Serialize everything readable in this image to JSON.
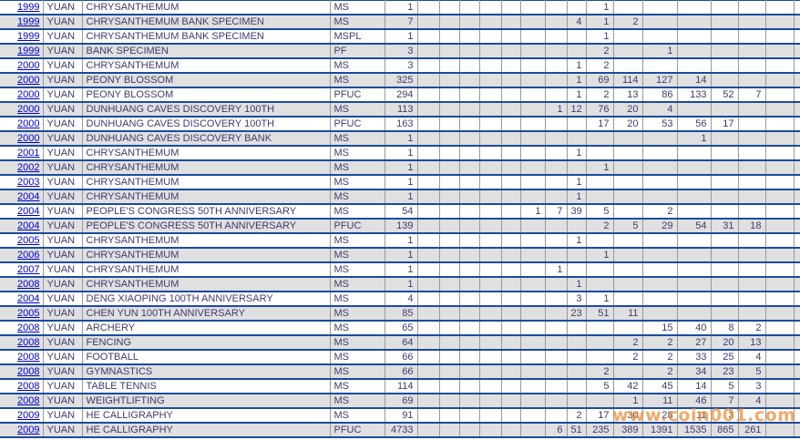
{
  "colors": {
    "row_separator_blue": "#1b4b9e",
    "grid_line_gray": "#999999",
    "text_ink": "#413a6e",
    "year_link_blue": "#0000cc",
    "alt_row_gray": "#e0e0e0",
    "watermark_orange": "#ea9440"
  },
  "watermark": {
    "text": "www.coin001.com"
  },
  "census_table": {
    "rows": [
      {
        "year": "1999",
        "denomination": "YUAN",
        "description": "CHRYSANTHEMUM",
        "designation": "MS",
        "total": "1",
        "grades": [
          "",
          "",
          "",
          "",
          "",
          "",
          "",
          "",
          "1",
          "",
          "",
          "",
          "",
          "",
          "",
          ""
        ]
      },
      {
        "year": "1999",
        "denomination": "YUAN",
        "description": "CHRYSANTHEMUM BANK SPECIMEN",
        "designation": "MS",
        "total": "7",
        "grades": [
          "",
          "",
          "",
          "",
          "",
          "",
          "",
          "4",
          "1",
          "2",
          "",
          "",
          "",
          "",
          "",
          ""
        ]
      },
      {
        "year": "1999",
        "denomination": "YUAN",
        "description": "CHRYSANTHEMUM BANK SPECIMEN",
        "designation": "MSPL",
        "total": "1",
        "grades": [
          "",
          "",
          "",
          "",
          "",
          "",
          "",
          "",
          "1",
          "",
          "",
          "",
          "",
          "",
          "",
          ""
        ]
      },
      {
        "year": "1999",
        "denomination": "YUAN",
        "description": "BANK SPECIMEN",
        "designation": "PF",
        "total": "3",
        "grades": [
          "",
          "",
          "",
          "",
          "",
          "",
          "",
          "",
          "2",
          "",
          "1",
          "",
          "",
          "",
          "",
          ""
        ]
      },
      {
        "year": "2000",
        "denomination": "YUAN",
        "description": "CHRYSANTHEMUM",
        "designation": "MS",
        "total": "3",
        "grades": [
          "",
          "",
          "",
          "",
          "",
          "",
          "",
          "1",
          "2",
          "",
          "",
          "",
          "",
          "",
          "",
          ""
        ]
      },
      {
        "year": "2000",
        "denomination": "YUAN",
        "description": "PEONY BLOSSOM",
        "designation": "MS",
        "total": "325",
        "grades": [
          "",
          "",
          "",
          "",
          "",
          "",
          "",
          "1",
          "69",
          "114",
          "127",
          "14",
          "",
          "",
          "",
          ""
        ]
      },
      {
        "year": "2000",
        "denomination": "YUAN",
        "description": "PEONY BLOSSOM",
        "designation": "PFUC",
        "total": "294",
        "grades": [
          "",
          "",
          "",
          "",
          "",
          "",
          "",
          "1",
          "2",
          "13",
          "86",
          "133",
          "52",
          "7",
          "",
          ""
        ]
      },
      {
        "year": "2000",
        "denomination": "YUAN",
        "description": "DUNHUANG CAVES DISCOVERY 100TH",
        "designation": "MS",
        "total": "113",
        "grades": [
          "",
          "",
          "",
          "",
          "",
          "",
          "1",
          "12",
          "76",
          "20",
          "4",
          "",
          "",
          "",
          "",
          ""
        ]
      },
      {
        "year": "2000",
        "denomination": "YUAN",
        "description": "DUNHUANG CAVES DISCOVERY 100TH",
        "designation": "PFUC",
        "total": "163",
        "grades": [
          "",
          "",
          "",
          "",
          "",
          "",
          "",
          "",
          "17",
          "20",
          "53",
          "56",
          "17",
          "",
          "",
          ""
        ]
      },
      {
        "year": "2000",
        "denomination": "YUAN",
        "description": "DUNHUANG CAVES DISCOVERY BANK",
        "designation": "MS",
        "total": "1",
        "grades": [
          "",
          "",
          "",
          "",
          "",
          "",
          "",
          "",
          "",
          "",
          "",
          "1",
          "",
          "",
          "",
          ""
        ]
      },
      {
        "year": "2001",
        "denomination": "YUAN",
        "description": "CHRYSANTHEMUM",
        "designation": "MS",
        "total": "1",
        "grades": [
          "",
          "",
          "",
          "",
          "",
          "",
          "",
          "1",
          "",
          "",
          "",
          "",
          "",
          "",
          "",
          ""
        ]
      },
      {
        "year": "2002",
        "denomination": "YUAN",
        "description": "CHRYSANTHEMUM",
        "designation": "MS",
        "total": "1",
        "grades": [
          "",
          "",
          "",
          "",
          "",
          "",
          "",
          "",
          "1",
          "",
          "",
          "",
          "",
          "",
          "",
          ""
        ]
      },
      {
        "year": "2003",
        "denomination": "YUAN",
        "description": "CHRYSANTHEMUM",
        "designation": "MS",
        "total": "1",
        "grades": [
          "",
          "",
          "",
          "",
          "",
          "",
          "",
          "1",
          "",
          "",
          "",
          "",
          "",
          "",
          "",
          ""
        ]
      },
      {
        "year": "2004",
        "denomination": "YUAN",
        "description": "CHRYSANTHEMUM",
        "designation": "MS",
        "total": "1",
        "grades": [
          "",
          "",
          "",
          "",
          "",
          "",
          "",
          "1",
          "",
          "",
          "",
          "",
          "",
          "",
          "",
          ""
        ]
      },
      {
        "year": "2004",
        "denomination": "YUAN",
        "description": "PEOPLE'S CONGRESS 50TH ANNIVERSARY",
        "designation": "MS",
        "total": "54",
        "grades": [
          "",
          "",
          "",
          "",
          "",
          "1",
          "7",
          "39",
          "5",
          "",
          "2",
          "",
          "",
          "",
          "",
          ""
        ]
      },
      {
        "year": "2004",
        "denomination": "YUAN",
        "description": "PEOPLE'S CONGRESS 50TH ANNIVERSARY",
        "designation": "PFUC",
        "total": "139",
        "grades": [
          "",
          "",
          "",
          "",
          "",
          "",
          "",
          "",
          "2",
          "5",
          "29",
          "54",
          "31",
          "18",
          "",
          ""
        ]
      },
      {
        "year": "2005",
        "denomination": "YUAN",
        "description": "CHRYSANTHEMUM",
        "designation": "MS",
        "total": "1",
        "grades": [
          "",
          "",
          "",
          "",
          "",
          "",
          "",
          "1",
          "",
          "",
          "",
          "",
          "",
          "",
          "",
          ""
        ]
      },
      {
        "year": "2006",
        "denomination": "YUAN",
        "description": "CHRYSANTHEMUM",
        "designation": "MS",
        "total": "1",
        "grades": [
          "",
          "",
          "",
          "",
          "",
          "",
          "",
          "",
          "1",
          "",
          "",
          "",
          "",
          "",
          "",
          ""
        ]
      },
      {
        "year": "2007",
        "denomination": "YUAN",
        "description": "CHRYSANTHEMUM",
        "designation": "MS",
        "total": "1",
        "grades": [
          "",
          "",
          "",
          "",
          "",
          "",
          "1",
          "",
          "",
          "",
          "",
          "",
          "",
          "",
          "",
          ""
        ]
      },
      {
        "year": "2008",
        "denomination": "YUAN",
        "description": "CHRYSANTHEMUM",
        "designation": "MS",
        "total": "1",
        "grades": [
          "",
          "",
          "",
          "",
          "",
          "",
          "",
          "1",
          "",
          "",
          "",
          "",
          "",
          "",
          "",
          ""
        ]
      },
      {
        "year": "2004",
        "denomination": "YUAN",
        "description": "DENG XIAOPING 100TH ANNIVERSARY",
        "designation": "MS",
        "total": "4",
        "grades": [
          "",
          "",
          "",
          "",
          "",
          "",
          "",
          "3",
          "1",
          "",
          "",
          "",
          "",
          "",
          "",
          ""
        ]
      },
      {
        "year": "2005",
        "denomination": "YUAN",
        "description": "CHEN YUN 100TH ANNIVERSARY",
        "designation": "MS",
        "total": "85",
        "grades": [
          "",
          "",
          "",
          "",
          "",
          "",
          "",
          "23",
          "51",
          "11",
          "",
          "",
          "",
          "",
          "",
          ""
        ]
      },
      {
        "year": "2008",
        "denomination": "YUAN",
        "description": "ARCHERY",
        "designation": "MS",
        "total": "65",
        "grades": [
          "",
          "",
          "",
          "",
          "",
          "",
          "",
          "",
          "",
          "",
          "15",
          "40",
          "8",
          "2",
          "",
          ""
        ]
      },
      {
        "year": "2008",
        "denomination": "YUAN",
        "description": "FENCING",
        "designation": "MS",
        "total": "64",
        "grades": [
          "",
          "",
          "",
          "",
          "",
          "",
          "",
          "",
          "",
          "2",
          "2",
          "27",
          "20",
          "13",
          "",
          ""
        ]
      },
      {
        "year": "2008",
        "denomination": "YUAN",
        "description": "FOOTBALL",
        "designation": "MS",
        "total": "66",
        "grades": [
          "",
          "",
          "",
          "",
          "",
          "",
          "",
          "",
          "",
          "2",
          "2",
          "33",
          "25",
          "4",
          "",
          ""
        ]
      },
      {
        "year": "2008",
        "denomination": "YUAN",
        "description": "GYMNASTICS",
        "designation": "MS",
        "total": "66",
        "grades": [
          "",
          "",
          "",
          "",
          "",
          "",
          "",
          "",
          "2",
          "",
          "2",
          "34",
          "23",
          "5",
          "",
          ""
        ]
      },
      {
        "year": "2008",
        "denomination": "YUAN",
        "description": "TABLE TENNIS",
        "designation": "MS",
        "total": "114",
        "grades": [
          "",
          "",
          "",
          "",
          "",
          "",
          "",
          "",
          "5",
          "42",
          "45",
          "14",
          "5",
          "3",
          "",
          ""
        ]
      },
      {
        "year": "2008",
        "denomination": "YUAN",
        "description": "WEIGHTLIFTING",
        "designation": "MS",
        "total": "69",
        "grades": [
          "",
          "",
          "",
          "",
          "",
          "",
          "",
          "",
          "",
          "1",
          "11",
          "46",
          "7",
          "4",
          "",
          ""
        ]
      },
      {
        "year": "2009",
        "denomination": "YUAN",
        "description": "HE CALLIGRAPHY",
        "designation": "MS",
        "total": "91",
        "grades": [
          "",
          "",
          "",
          "",
          "",
          "",
          "",
          "2",
          "17",
          "30",
          "28",
          "11",
          "3",
          "",
          "",
          ""
        ]
      },
      {
        "year": "2009",
        "denomination": "YUAN",
        "description": "HE CALLIGRAPHY",
        "designation": "PFUC",
        "total": "4733",
        "grades": [
          "",
          "",
          "",
          "",
          "",
          "",
          "6",
          "51",
          "235",
          "389",
          "1391",
          "1535",
          "865",
          "261",
          "",
          ""
        ]
      }
    ]
  }
}
